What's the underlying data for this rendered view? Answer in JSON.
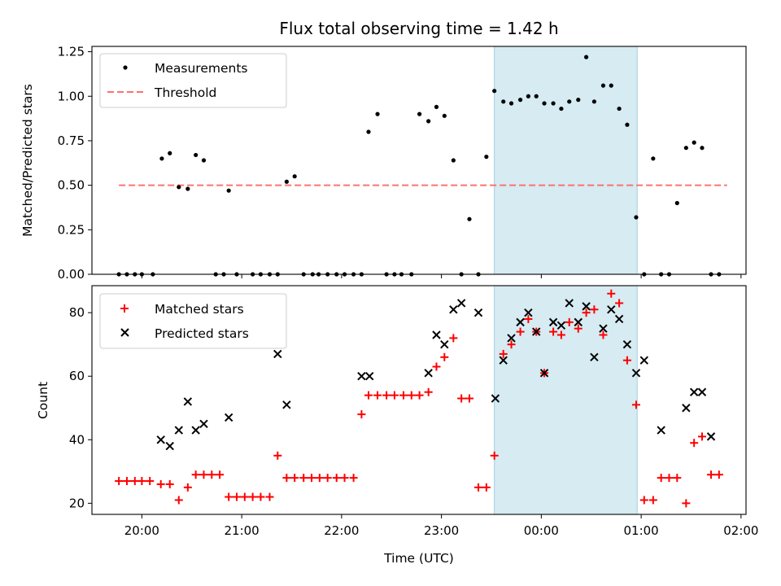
{
  "chart_data": [
    {
      "type": "scatter",
      "title": "Flux total observing time = 1.42 h",
      "xlabel": "",
      "ylabel": "Matched/Predicted stars",
      "x_unit": "hours after 20:00 UTC",
      "xlim": [
        -0.5,
        6.05
      ],
      "ylim": [
        0,
        1.28
      ],
      "yticks": [
        0.0,
        0.25,
        0.5,
        0.75,
        1.0,
        1.25
      ],
      "ytick_labels": [
        "0.00",
        "0.25",
        "0.50",
        "0.75",
        "1.00",
        "1.25"
      ],
      "xticks": [
        0,
        1,
        2,
        3,
        4,
        5,
        6
      ],
      "grid": false,
      "legend_position": "upper left",
      "highlight_span": {
        "x_start": 3.53,
        "x_end": 4.96,
        "color": "#add8e6"
      },
      "series": [
        {
          "name": "Measurements",
          "kind": "scatter-dot",
          "color": "#000000",
          "x": [
            -0.23,
            -0.15,
            -0.07,
            0.0,
            0.11,
            0.2,
            0.28,
            0.37,
            0.46,
            0.54,
            0.62,
            0.74,
            0.82,
            0.87,
            0.95,
            1.11,
            1.19,
            1.28,
            1.36,
            1.45,
            1.53,
            1.62,
            1.71,
            1.77,
            1.86,
            1.95,
            2.03,
            2.12,
            2.2,
            2.27,
            2.36,
            2.45,
            2.53,
            2.6,
            2.7,
            2.78,
            2.87,
            2.95,
            3.03,
            3.12,
            3.2,
            3.28,
            3.37,
            3.45,
            3.53,
            3.62,
            3.7,
            3.79,
            3.87,
            3.95,
            4.03,
            4.12,
            4.2,
            4.28,
            4.37,
            4.45,
            4.53,
            4.62,
            4.7,
            4.78,
            4.86,
            4.95,
            5.03,
            5.12,
            5.2,
            5.28,
            5.36,
            5.45,
            5.53,
            5.61,
            5.7,
            5.78
          ],
          "y": [
            0,
            0,
            0,
            0,
            0,
            0.65,
            0.68,
            0.49,
            0.48,
            0.67,
            0.64,
            0,
            0,
            0.47,
            0,
            0,
            0,
            0,
            0,
            0.52,
            0.55,
            0,
            0,
            0,
            0,
            0,
            0,
            0,
            0,
            0.8,
            0.9,
            0,
            0,
            0,
            0,
            0.9,
            0.86,
            0.94,
            0.89,
            0.64,
            0,
            0.31,
            0,
            0.66,
            1.03,
            0.97,
            0.96,
            0.98,
            1.0,
            1.0,
            0.96,
            0.96,
            0.93,
            0.97,
            0.98,
            1.22,
            0.97,
            1.06,
            1.06,
            0.93,
            0.84,
            0.32,
            0,
            0.65,
            0,
            0,
            0.4,
            0.71,
            0.74,
            0.71,
            0,
            0
          ]
        },
        {
          "name": "Threshold",
          "kind": "dashed-line",
          "color": "#ff7070",
          "x": [
            -0.23,
            5.86
          ],
          "y": [
            0.5,
            0.5
          ]
        }
      ]
    },
    {
      "type": "scatter",
      "title": "",
      "xlabel": "Time (UTC)",
      "ylabel": "Count",
      "x_unit": "hours after 20:00 UTC",
      "xlim": [
        -0.5,
        6.05
      ],
      "ylim": [
        16.5,
        88.5
      ],
      "yticks": [
        20,
        40,
        60,
        80
      ],
      "ytick_labels": [
        "20",
        "40",
        "60",
        "80"
      ],
      "xticks": [
        0,
        1,
        2,
        3,
        4,
        5,
        6
      ],
      "xtick_labels": [
        "20:00",
        "21:00",
        "22:00",
        "23:00",
        "00:00",
        "01:00",
        "02:00"
      ],
      "grid": false,
      "legend_position": "upper left",
      "highlight_span": {
        "x_start": 3.53,
        "x_end": 4.96,
        "color": "#add8e6"
      },
      "series": [
        {
          "name": "Matched stars",
          "kind": "plus",
          "color": "#ff0000",
          "x": [
            -0.23,
            -0.15,
            -0.07,
            0.0,
            0.08,
            0.19,
            0.28,
            0.37,
            0.46,
            0.54,
            0.62,
            0.7,
            0.78,
            0.87,
            0.95,
            1.03,
            1.11,
            1.19,
            1.28,
            1.36,
            1.45,
            1.53,
            1.62,
            1.7,
            1.78,
            1.86,
            1.95,
            2.03,
            2.12,
            2.2,
            2.27,
            2.36,
            2.45,
            2.53,
            2.62,
            2.7,
            2.78,
            2.87,
            2.95,
            3.03,
            3.12,
            3.2,
            3.28,
            3.37,
            3.45,
            3.53,
            3.62,
            3.7,
            3.79,
            3.87,
            3.95,
            4.03,
            4.12,
            4.2,
            4.28,
            4.37,
            4.45,
            4.53,
            4.62,
            4.7,
            4.78,
            4.86,
            4.95,
            5.03,
            5.12,
            5.2,
            5.28,
            5.36,
            5.45,
            5.53,
            5.61,
            5.7,
            5.78
          ],
          "y": [
            27,
            27,
            27,
            27,
            27,
            26,
            26,
            21,
            25,
            29,
            29,
            29,
            29,
            22,
            22,
            22,
            22,
            22,
            22,
            35,
            28,
            28,
            28,
            28,
            28,
            28,
            28,
            28,
            28,
            48,
            54,
            54,
            54,
            54,
            54,
            54,
            54,
            55,
            63,
            66,
            72,
            53,
            53,
            25,
            25,
            35,
            67,
            70,
            74,
            78,
            74,
            61,
            74,
            73,
            77,
            75,
            80,
            81,
            73,
            86,
            83,
            65,
            51,
            21,
            21,
            28,
            28,
            28,
            20,
            39,
            41,
            29,
            29
          ]
        },
        {
          "name": "Predicted stars",
          "kind": "x",
          "color": "#000000",
          "x": [
            0.19,
            0.28,
            0.37,
            0.46,
            0.54,
            0.62,
            0.87,
            1.36,
            1.45,
            2.2,
            2.28,
            2.87,
            2.95,
            3.03,
            3.12,
            3.2,
            3.37,
            3.54,
            3.62,
            3.7,
            3.79,
            3.87,
            3.95,
            4.03,
            4.12,
            4.2,
            4.28,
            4.37,
            4.45,
            4.53,
            4.62,
            4.7,
            4.78,
            4.86,
            4.95,
            5.03,
            5.2,
            5.45,
            5.53,
            5.61,
            5.7
          ],
          "y": [
            40,
            38,
            43,
            52,
            43,
            45,
            47,
            67,
            51,
            60,
            60,
            61,
            73,
            70,
            81,
            83,
            80,
            53,
            65,
            72,
            77,
            80,
            74,
            61,
            77,
            76,
            83,
            77,
            82,
            66,
            75,
            81,
            78,
            70,
            61,
            65,
            43,
            50,
            55,
            55,
            41
          ]
        }
      ]
    }
  ]
}
